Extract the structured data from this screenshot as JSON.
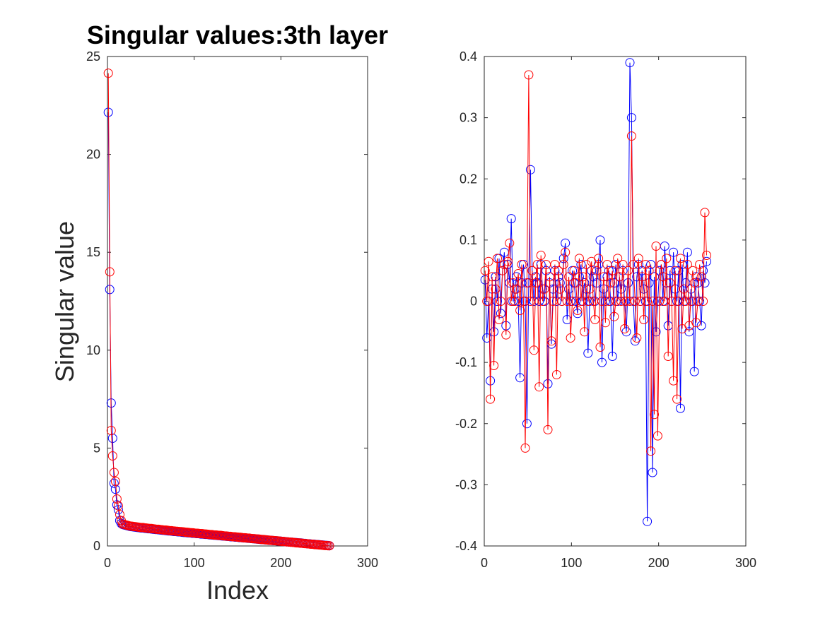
{
  "chart_data": [
    {
      "type": "line",
      "title": "Singular values:3th layer",
      "xlabel": "Index",
      "ylabel": "Singular value",
      "xlim": [
        0,
        300
      ],
      "ylim": [
        0,
        25
      ],
      "xticks": [
        0,
        100,
        200,
        300
      ],
      "yticks": [
        0,
        5,
        10,
        15,
        20,
        25
      ],
      "marker": "circle",
      "grid": false,
      "series": [
        {
          "color": "#0000ff",
          "values": [
            22.15,
            13.1,
            7.3,
            5.5,
            3.2,
            2.9,
            2.1,
            1.85,
            1.3,
            1.15,
            1.1,
            1.08,
            1.06,
            1.04,
            1.02,
            1.0,
            0.99,
            0.98,
            0.97,
            0.96,
            0.95,
            0.94,
            0.93,
            0.92,
            0.92,
            0.91,
            0.9,
            0.89,
            0.88,
            0.88,
            0.87,
            0.86,
            0.85,
            0.84,
            0.84,
            0.83,
            0.82,
            0.81,
            0.8,
            0.8,
            0.79,
            0.78,
            0.77,
            0.77,
            0.76,
            0.75,
            0.74,
            0.74,
            0.73,
            0.72,
            0.72,
            0.71,
            0.7,
            0.69,
            0.69,
            0.68,
            0.67,
            0.67,
            0.66,
            0.65,
            0.65,
            0.64,
            0.63,
            0.63,
            0.62,
            0.61,
            0.61,
            0.6,
            0.59,
            0.59,
            0.58,
            0.57,
            0.57,
            0.56,
            0.55,
            0.55,
            0.54,
            0.53,
            0.53,
            0.52,
            0.51,
            0.51,
            0.5,
            0.49,
            0.49,
            0.48,
            0.47,
            0.47,
            0.46,
            0.45,
            0.45,
            0.44,
            0.43,
            0.43,
            0.42,
            0.41,
            0.41,
            0.4,
            0.39,
            0.39,
            0.38,
            0.37,
            0.37,
            0.36,
            0.35,
            0.35,
            0.34,
            0.33,
            0.33,
            0.32,
            0.31,
            0.31,
            0.3,
            0.29,
            0.29,
            0.28,
            0.27,
            0.27,
            0.26,
            0.25,
            0.25,
            0.24,
            0.23,
            0.23,
            0.22,
            0.21,
            0.21,
            0.2,
            0.19,
            0.19,
            0.18,
            0.17,
            0.17,
            0.16,
            0.15,
            0.15,
            0.14,
            0.13,
            0.13,
            0.12,
            0.11,
            0.11,
            0.1,
            0.09,
            0.09,
            0.08,
            0.07,
            0.07,
            0.06,
            0.05,
            0.05,
            0.04,
            0.03,
            0.03,
            0.02,
            0.01
          ]
        },
        {
          "color": "#ff0000",
          "values": [
            24.15,
            14.0,
            5.9,
            4.6,
            3.75,
            3.3,
            2.4,
            2.05,
            1.6,
            1.3,
            1.12,
            1.1,
            1.08,
            1.06,
            1.04,
            1.02,
            1.01,
            1.0,
            0.99,
            0.98,
            0.97,
            0.96,
            0.95,
            0.94,
            0.94,
            0.93,
            0.92,
            0.91,
            0.9,
            0.89,
            0.89,
            0.88,
            0.87,
            0.86,
            0.85,
            0.85,
            0.84,
            0.83,
            0.82,
            0.81,
            0.81,
            0.8,
            0.79,
            0.78,
            0.78,
            0.77,
            0.76,
            0.75,
            0.75,
            0.74,
            0.73,
            0.73,
            0.72,
            0.71,
            0.7,
            0.7,
            0.69,
            0.68,
            0.68,
            0.67,
            0.66,
            0.65,
            0.65,
            0.64,
            0.63,
            0.63,
            0.62,
            0.61,
            0.61,
            0.6,
            0.59,
            0.58,
            0.58,
            0.57,
            0.56,
            0.56,
            0.55,
            0.54,
            0.54,
            0.53,
            0.52,
            0.51,
            0.51,
            0.5,
            0.49,
            0.49,
            0.48,
            0.47,
            0.47,
            0.46,
            0.45,
            0.44,
            0.44,
            0.43,
            0.42,
            0.42,
            0.41,
            0.4,
            0.4,
            0.39,
            0.38,
            0.37,
            0.37,
            0.36,
            0.35,
            0.35,
            0.34,
            0.33,
            0.33,
            0.32,
            0.31,
            0.3,
            0.3,
            0.29,
            0.28,
            0.28,
            0.27,
            0.26,
            0.26,
            0.25,
            0.24,
            0.23,
            0.23,
            0.22,
            0.21,
            0.21,
            0.2,
            0.19,
            0.19,
            0.18,
            0.17,
            0.16,
            0.16,
            0.15,
            0.14,
            0.14,
            0.13,
            0.12,
            0.12,
            0.11,
            0.1,
            0.09,
            0.09,
            0.08,
            0.07,
            0.07,
            0.06,
            0.05,
            0.05,
            0.04,
            0.03,
            0.02,
            0.02,
            0.01,
            0.01
          ]
        }
      ]
    },
    {
      "type": "line",
      "title": "",
      "xlabel": "",
      "ylabel": "",
      "xlim": [
        0,
        300
      ],
      "ylim": [
        -0.4,
        0.4
      ],
      "xticks": [
        0,
        100,
        200,
        300
      ],
      "yticks": [
        -0.4,
        -0.3,
        -0.2,
        -0.1,
        0,
        0.1,
        0.2,
        0.3,
        0.4
      ],
      "marker": "circle",
      "grid": false,
      "series": [
        {
          "color": "#0000ff",
          "x": [
            1,
            3,
            5,
            7,
            9,
            11,
            13,
            15,
            17,
            19,
            21,
            23,
            25,
            27,
            29,
            31,
            33,
            35,
            37,
            39,
            41,
            43,
            45,
            47,
            49,
            51,
            53,
            55,
            57,
            59,
            61,
            63,
            65,
            67,
            69,
            71,
            73,
            75,
            77,
            79,
            81,
            83,
            85,
            87,
            89,
            91,
            93,
            95,
            97,
            99,
            101,
            103,
            105,
            107,
            109,
            111,
            113,
            115,
            117,
            119,
            121,
            123,
            125,
            127,
            129,
            131,
            133,
            135,
            137,
            139,
            141,
            143,
            145,
            147,
            149,
            151,
            153,
            155,
            157,
            159,
            161,
            163,
            165,
            167,
            169,
            171,
            173,
            175,
            177,
            179,
            181,
            183,
            185,
            187,
            189,
            191,
            193,
            195,
            197,
            199,
            201,
            203,
            205,
            207,
            209,
            211,
            213,
            215,
            217,
            219,
            221,
            223,
            225,
            227,
            229,
            231,
            233,
            235,
            237,
            239,
            241,
            243,
            245,
            247,
            249,
            251,
            253,
            255
          ],
          "y": [
            0.035,
            -0.06,
            0.0,
            -0.13,
            0.02,
            -0.05,
            0.04,
            0.0,
            0.07,
            -0.02,
            0.05,
            0.08,
            -0.04,
            0.06,
            0.03,
            0.135,
            0.0,
            0.02,
            0.04,
            0.0,
            -0.125,
            0.03,
            0.06,
            0.0,
            -0.2,
            0.03,
            0.215,
            0.05,
            0.0,
            0.04,
            0.03,
            0.0,
            0.06,
            0.02,
            0.0,
            0.05,
            -0.135,
            0.03,
            -0.07,
            0.02,
            0.05,
            0.0,
            0.04,
            0.03,
            0.0,
            0.07,
            0.095,
            -0.03,
            0.02,
            0.0,
            0.05,
            0.03,
            0.0,
            -0.02,
            0.04,
            0.06,
            0.0,
            0.03,
            0.02,
            -0.085,
            0.0,
            0.05,
            0.04,
            0.0,
            0.03,
            0.06,
            0.1,
            -0.1,
            0.02,
            0.0,
            0.04,
            0.05,
            0.0,
            -0.09,
            0.03,
            0.06,
            0.0,
            0.04,
            0.02,
            0.05,
            0.0,
            -0.05,
            0.03,
            0.39,
            0.3,
            0.0,
            -0.065,
            0.04,
            0.06,
            0.0,
            0.05,
            0.02,
            0.0,
            -0.36,
            0.03,
            0.06,
            -0.28,
            0.04,
            -0.05,
            0.0,
            0.05,
            0.06,
            0.0,
            0.09,
            0.03,
            -0.04,
            0.05,
            0.0,
            0.08,
            0.02,
            0.0,
            0.05,
            -0.175,
            0.06,
            0.0,
            0.03,
            0.08,
            -0.05,
            0.02,
            0.0,
            -0.115,
            0.04,
            0.03,
            0.0,
            -0.04,
            0.05,
            0.03,
            0.065
          ]
        },
        {
          "color": "#ff0000",
          "x": [
            1,
            3,
            5,
            7,
            9,
            11,
            13,
            15,
            17,
            19,
            21,
            23,
            25,
            27,
            29,
            31,
            33,
            35,
            37,
            39,
            41,
            43,
            45,
            47,
            49,
            51,
            53,
            55,
            57,
            59,
            61,
            63,
            65,
            67,
            69,
            71,
            73,
            75,
            77,
            79,
            81,
            83,
            85,
            87,
            89,
            91,
            93,
            95,
            97,
            99,
            101,
            103,
            105,
            107,
            109,
            111,
            113,
            115,
            117,
            119,
            121,
            123,
            125,
            127,
            129,
            131,
            133,
            135,
            137,
            139,
            141,
            143,
            145,
            147,
            149,
            151,
            153,
            155,
            157,
            159,
            161,
            163,
            165,
            167,
            169,
            171,
            173,
            175,
            177,
            179,
            181,
            183,
            185,
            187,
            189,
            191,
            193,
            195,
            197,
            199,
            201,
            203,
            205,
            207,
            209,
            211,
            213,
            215,
            217,
            219,
            221,
            223,
            225,
            227,
            229,
            231,
            233,
            235,
            237,
            239,
            241,
            243,
            245,
            247,
            249,
            251,
            253,
            255
          ],
          "y": [
            0.05,
            0.0,
            0.065,
            -0.16,
            0.04,
            -0.105,
            0.02,
            0.07,
            -0.03,
            0.0,
            0.05,
            0.06,
            -0.055,
            0.065,
            0.095,
            0.0,
            0.03,
            0.0,
            0.02,
            0.045,
            -0.015,
            0.06,
            0.0,
            -0.24,
            0.03,
            0.37,
            0.0,
            0.05,
            -0.08,
            0.03,
            0.06,
            -0.14,
            0.075,
            0.0,
            0.02,
            0.06,
            -0.21,
            0.04,
            -0.065,
            0.0,
            0.06,
            -0.12,
            0.05,
            0.02,
            0.0,
            0.06,
            0.08,
            0.0,
            0.04,
            -0.06,
            0.0,
            0.05,
            0.03,
            -0.015,
            0.07,
            0.0,
            0.04,
            -0.05,
            0.06,
            0.0,
            0.02,
            0.065,
            0.0,
            -0.03,
            0.05,
            0.07,
            -0.075,
            0.0,
            0.04,
            -0.035,
            0.06,
            0.0,
            0.03,
            0.05,
            -0.025,
            0.0,
            0.07,
            0.04,
            0.0,
            0.06,
            -0.045,
            0.0,
            0.05,
            0.0,
            0.27,
            0.06,
            0.0,
            -0.06,
            0.07,
            0.0,
            0.04,
            -0.03,
            0.06,
            0.0,
            0.05,
            -0.245,
            0.0,
            -0.185,
            0.09,
            -0.22,
            0.0,
            0.06,
            0.04,
            0.0,
            0.07,
            -0.09,
            0.03,
            0.0,
            -0.13,
            0.05,
            -0.16,
            0.0,
            0.07,
            -0.045,
            0.02,
            0.0,
            0.06,
            -0.04,
            0.0,
            0.05,
            0.03,
            -0.035,
            0.0,
            0.06,
            0.04,
            0.0,
            0.145,
            0.075
          ]
        }
      ]
    }
  ]
}
